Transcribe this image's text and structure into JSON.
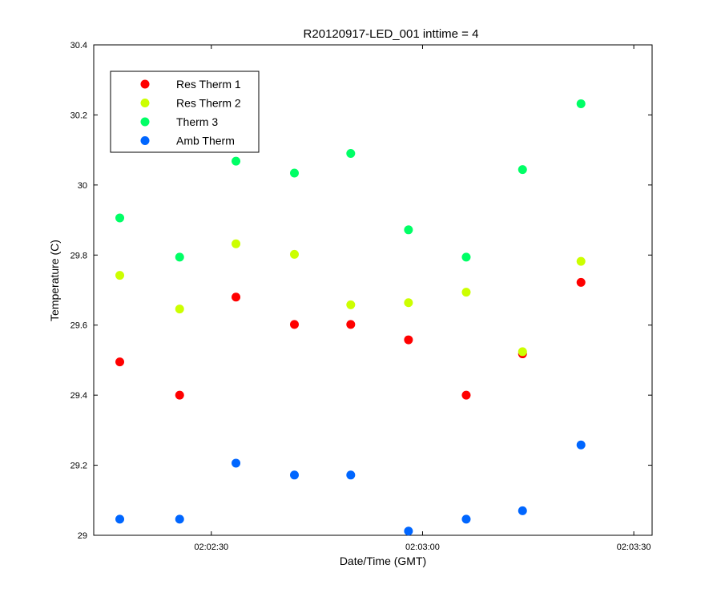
{
  "chart_data": {
    "type": "scatter",
    "title": "R20120917-LED_001 inttime = 4",
    "xlabel": "Date/Time (GMT)",
    "ylabel": "Temperature (C)",
    "xlim": [
      "02:02:13.3",
      "02:03:32.6"
    ],
    "ylim": [
      29,
      30.4
    ],
    "x_ticks": [
      "02:02:30",
      "02:03:00",
      "02:03:30"
    ],
    "y_ticks": [
      "29",
      "29.2",
      "29.4",
      "29.6",
      "29.8",
      "30",
      "30.2",
      "30.4"
    ],
    "grid": false,
    "legend_position": "top-left",
    "x": [
      "02:02:17",
      "02:02:25.5",
      "02:02:33.5",
      "02:02:41.8",
      "02:02:49.8",
      "02:02:58",
      "02:03:06.2",
      "02:03:14.2",
      "02:03:22.5"
    ],
    "series": [
      {
        "name": "Res Therm 1",
        "color": "#ff0000",
        "values": [
          29.495,
          29.4,
          29.68,
          29.602,
          29.602,
          29.558,
          29.4,
          29.518,
          29.722
        ]
      },
      {
        "name": "Res Therm 2",
        "color": "#ccff00",
        "values": [
          29.742,
          29.646,
          29.832,
          29.802,
          29.658,
          29.664,
          29.694,
          29.524,
          29.782
        ]
      },
      {
        "name": "Therm 3",
        "color": "#00ff66",
        "values": [
          29.906,
          29.794,
          30.068,
          30.034,
          30.09,
          29.872,
          29.794,
          30.044,
          30.232
        ]
      },
      {
        "name": "Amb Therm",
        "color": "#0066ff",
        "values": [
          29.046,
          29.046,
          29.206,
          29.172,
          29.172,
          29.012,
          29.046,
          29.07,
          29.258
        ]
      }
    ]
  }
}
